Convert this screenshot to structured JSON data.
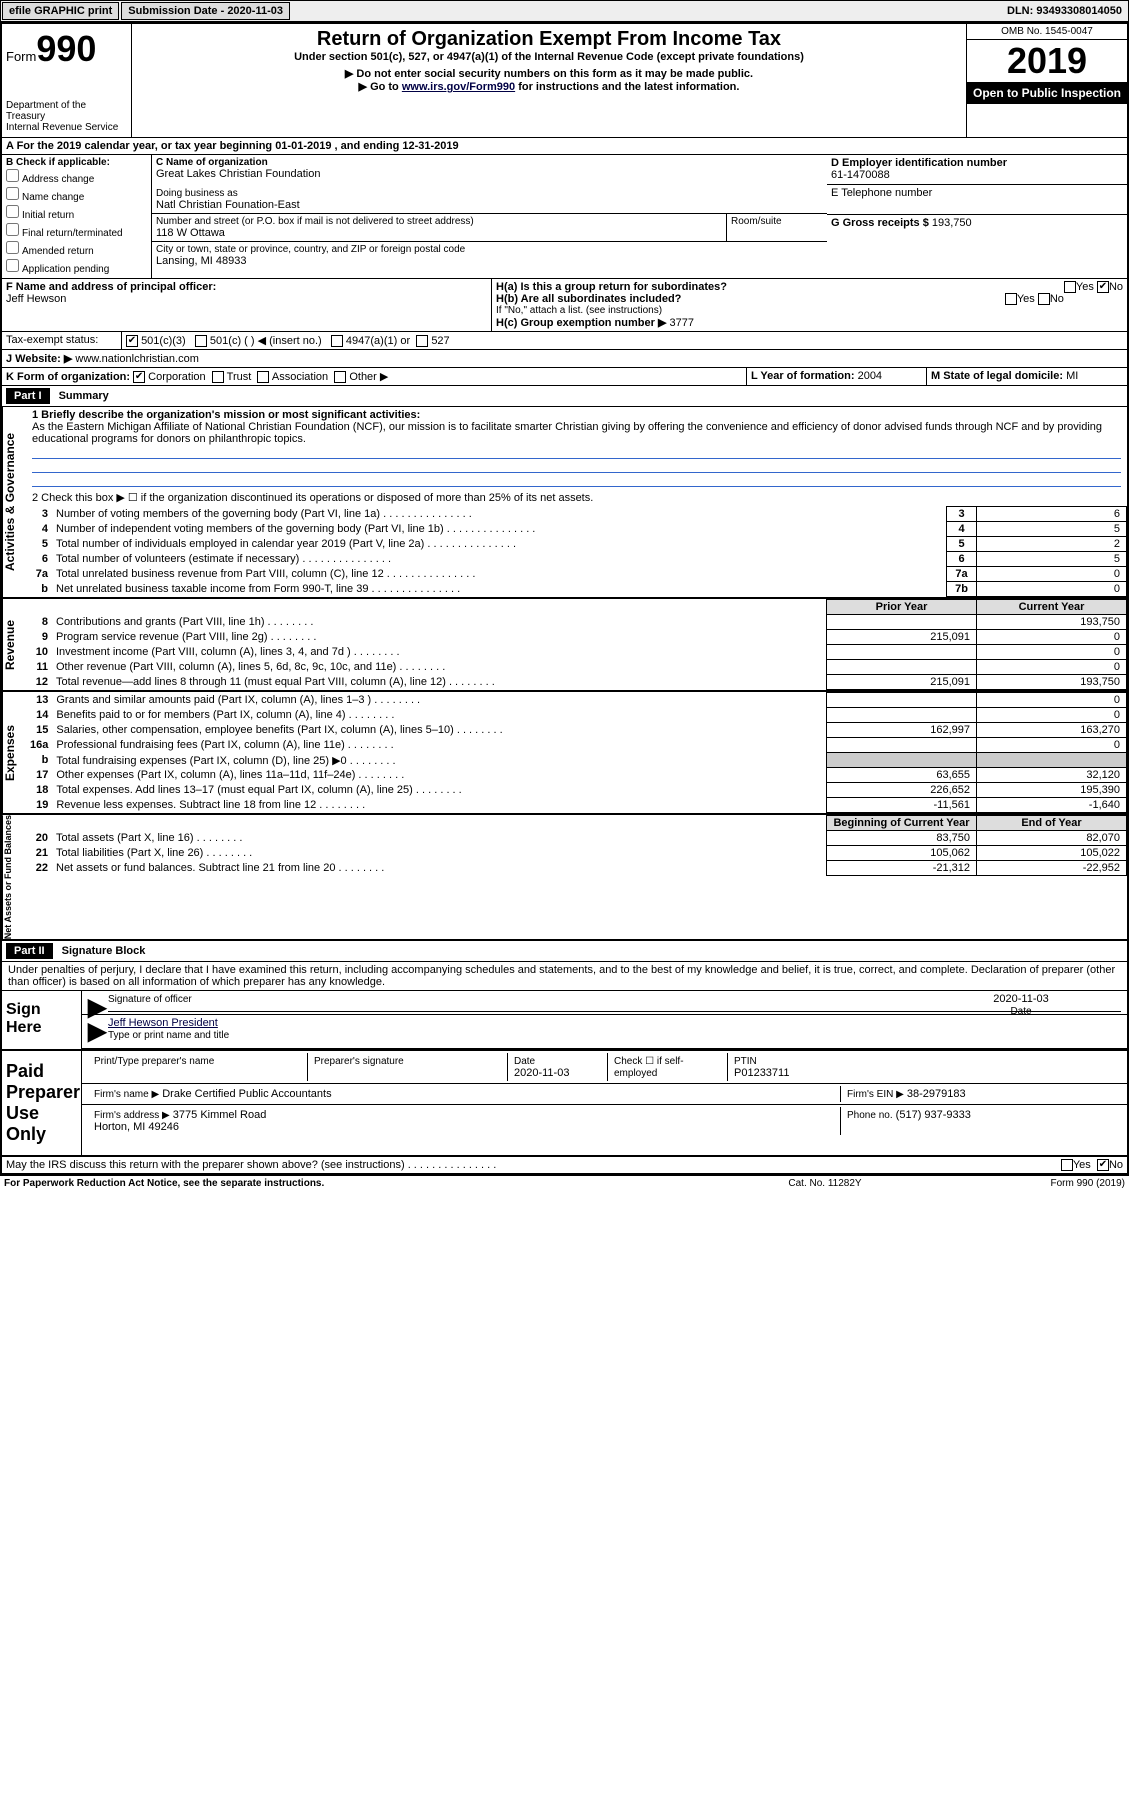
{
  "topbar": {
    "efile": "efile GRAPHIC print",
    "submission_label": "Submission Date - 2020-11-03",
    "dln_label": "DLN: 93493308014050"
  },
  "header": {
    "form_label": "Form",
    "form_num": "990",
    "dept": "Department of the Treasury",
    "irs": "Internal Revenue Service",
    "title": "Return of Organization Exempt From Income Tax",
    "subtitle": "Under section 501(c), 527, or 4947(a)(1) of the Internal Revenue Code (except private foundations)",
    "note1": "▶ Do not enter social security numbers on this form as it may be made public.",
    "note2_pre": "▶ Go to ",
    "note2_link": "www.irs.gov/Form990",
    "note2_post": " for instructions and the latest information.",
    "omb": "OMB No. 1545-0047",
    "year": "2019",
    "open": "Open to Public Inspection"
  },
  "lineA": "A For the 2019 calendar year, or tax year beginning 01-01-2019    , and ending 12-31-2019",
  "checkB": {
    "label": "B Check if applicable:",
    "opts": [
      "Address change",
      "Name change",
      "Initial return",
      "Final return/terminated",
      "Amended return",
      "Application pending"
    ]
  },
  "blockC": {
    "label": "C Name of organization",
    "name": "Great Lakes Christian Foundation",
    "dba_label": "Doing business as",
    "dba": "Natl Christian Founation-East",
    "street_label": "Number and street (or P.O. box if mail is not delivered to street address)",
    "street": "118 W Ottawa",
    "room_label": "Room/suite",
    "city_label": "City or town, state or province, country, and ZIP or foreign postal code",
    "city": "Lansing, MI  48933"
  },
  "blockD": {
    "label": "D Employer identification number",
    "val": "61-1470088"
  },
  "blockE": {
    "label": "E Telephone number",
    "val": ""
  },
  "blockG": {
    "label": "G Gross receipts $",
    "val": "193,750"
  },
  "blockF": {
    "label": "F  Name and address of principal officer:",
    "name": "Jeff Hewson"
  },
  "blockH": {
    "a_label": "H(a)  Is this a group return for subordinates?",
    "b_label": "H(b)  Are all subordinates included?",
    "b_note": "If \"No,\" attach a list. (see instructions)",
    "c_label": "H(c)  Group exemption number ▶",
    "c_val": "3777",
    "yes": "Yes",
    "no": "No"
  },
  "taxstatus": {
    "label": "Tax-exempt status:",
    "c3": "501(c)(3)",
    "c": "501(c) (  ) ◀ (insert no.)",
    "a1": "4947(a)(1) or",
    "s527": "527"
  },
  "website": {
    "label": "J   Website: ▶",
    "val": "www.nationlchristian.com"
  },
  "lineK": {
    "label": "K Form of organization:",
    "corp": "Corporation",
    "trust": "Trust",
    "assoc": "Association",
    "other": "Other ▶"
  },
  "lineL": {
    "label": "L Year of formation:",
    "val": "2004"
  },
  "lineM": {
    "label": "M State of legal domicile:",
    "val": "MI"
  },
  "part1": {
    "hdr": "Part I",
    "title": "Summary",
    "l1_label": "1  Briefly describe the organization's mission or most significant activities:",
    "l1_text": "As the Eastern Michigan Affiliate of National Christian Foundation (NCF), our mission is to facilitate smarter Christian giving by offering the convenience and efficiency of donor advised funds through NCF and by providing educational programs for donors on philanthropic topics.",
    "l2": "2   Check this box ▶ ☐  if the organization discontinued its operations or disposed of more than 25% of its net assets.",
    "rows_ag": [
      {
        "n": "3",
        "t": "Number of voting members of the governing body (Part VI, line 1a)",
        "b": "3",
        "v": "6"
      },
      {
        "n": "4",
        "t": "Number of independent voting members of the governing body (Part VI, line 1b)",
        "b": "4",
        "v": "5"
      },
      {
        "n": "5",
        "t": "Total number of individuals employed in calendar year 2019 (Part V, line 2a)",
        "b": "5",
        "v": "2"
      },
      {
        "n": "6",
        "t": "Total number of volunteers (estimate if necessary)",
        "b": "6",
        "v": "5"
      },
      {
        "n": "7a",
        "t": "Total unrelated business revenue from Part VIII, column (C), line 12",
        "b": "7a",
        "v": "0"
      },
      {
        "n": "b",
        "t": "Net unrelated business taxable income from Form 990-T, line 39",
        "b": "7b",
        "v": "0"
      }
    ],
    "col_prior": "Prior Year",
    "col_curr": "Current Year",
    "rev": [
      {
        "n": "8",
        "t": "Contributions and grants (Part VIII, line 1h)",
        "p": "",
        "c": "193,750"
      },
      {
        "n": "9",
        "t": "Program service revenue (Part VIII, line 2g)",
        "p": "215,091",
        "c": "0"
      },
      {
        "n": "10",
        "t": "Investment income (Part VIII, column (A), lines 3, 4, and 7d )",
        "p": "",
        "c": "0"
      },
      {
        "n": "11",
        "t": "Other revenue (Part VIII, column (A), lines 5, 6d, 8c, 9c, 10c, and 11e)",
        "p": "",
        "c": "0"
      },
      {
        "n": "12",
        "t": "Total revenue—add lines 8 through 11 (must equal Part VIII, column (A), line 12)",
        "p": "215,091",
        "c": "193,750"
      }
    ],
    "exp": [
      {
        "n": "13",
        "t": "Grants and similar amounts paid (Part IX, column (A), lines 1–3 )",
        "p": "",
        "c": "0"
      },
      {
        "n": "14",
        "t": "Benefits paid to or for members (Part IX, column (A), line 4)",
        "p": "",
        "c": "0"
      },
      {
        "n": "15",
        "t": "Salaries, other compensation, employee benefits (Part IX, column (A), lines 5–10)",
        "p": "162,997",
        "c": "163,270"
      },
      {
        "n": "16a",
        "t": "Professional fundraising fees (Part IX, column (A), line 11e)",
        "p": "",
        "c": "0"
      },
      {
        "n": "b",
        "t": "Total fundraising expenses (Part IX, column (D), line 25) ▶0",
        "p": "shade",
        "c": "shade"
      },
      {
        "n": "17",
        "t": "Other expenses (Part IX, column (A), lines 11a–11d, 11f–24e)",
        "p": "63,655",
        "c": "32,120"
      },
      {
        "n": "18",
        "t": "Total expenses. Add lines 13–17 (must equal Part IX, column (A), line 25)",
        "p": "226,652",
        "c": "195,390"
      },
      {
        "n": "19",
        "t": "Revenue less expenses. Subtract line 18 from line 12",
        "p": "-11,561",
        "c": "-1,640"
      }
    ],
    "col_begin": "Beginning of Current Year",
    "col_end": "End of Year",
    "net": [
      {
        "n": "20",
        "t": "Total assets (Part X, line 16)",
        "p": "83,750",
        "c": "82,070"
      },
      {
        "n": "21",
        "t": "Total liabilities (Part X, line 26)",
        "p": "105,062",
        "c": "105,022"
      },
      {
        "n": "22",
        "t": "Net assets or fund balances. Subtract line 21 from line 20",
        "p": "-21,312",
        "c": "-22,952"
      }
    ],
    "vlabels": {
      "ag": "Activities & Governance",
      "rev": "Revenue",
      "exp": "Expenses",
      "net": "Net Assets or Fund Balances"
    }
  },
  "part2": {
    "hdr": "Part II",
    "title": "Signature Block",
    "decl": "Under penalties of perjury, I declare that I have examined this return, including accompanying schedules and statements, and to the best of my knowledge and belief, it is true, correct, and complete. Declaration of preparer (other than officer) is based on all information of which preparer has any knowledge."
  },
  "sign": {
    "here": "Sign Here",
    "sig_label": "Signature of officer",
    "date_label": "Date",
    "date": "2020-11-03",
    "name": "Jeff Hewson  President",
    "name_label": "Type or print name and title"
  },
  "paid": {
    "here": "Paid Preparer Use Only",
    "pt_name_label": "Print/Type preparer's name",
    "pt_sig_label": "Preparer's signature",
    "pt_date_label": "Date",
    "pt_date": "2020-11-03",
    "self_label": "Check ☐ if self-employed",
    "ptin_label": "PTIN",
    "ptin": "P01233711",
    "firm_name_label": "Firm's name    ▶",
    "firm_name": "Drake Certified Public Accountants",
    "firm_ein_label": "Firm's EIN ▶",
    "firm_ein": "38-2979183",
    "firm_addr_label": "Firm's address ▶",
    "firm_addr1": "3775 Kimmel Road",
    "firm_addr2": "Horton, MI  49246",
    "phone_label": "Phone no.",
    "phone": "(517) 937-9333"
  },
  "discuss": {
    "q": "May the IRS discuss this return with the preparer shown above? (see instructions)",
    "yes": "Yes",
    "no": "No"
  },
  "footer": {
    "left": "For Paperwork Reduction Act Notice, see the separate instructions.",
    "mid": "Cat. No. 11282Y",
    "right": "Form 990 (2019)"
  }
}
